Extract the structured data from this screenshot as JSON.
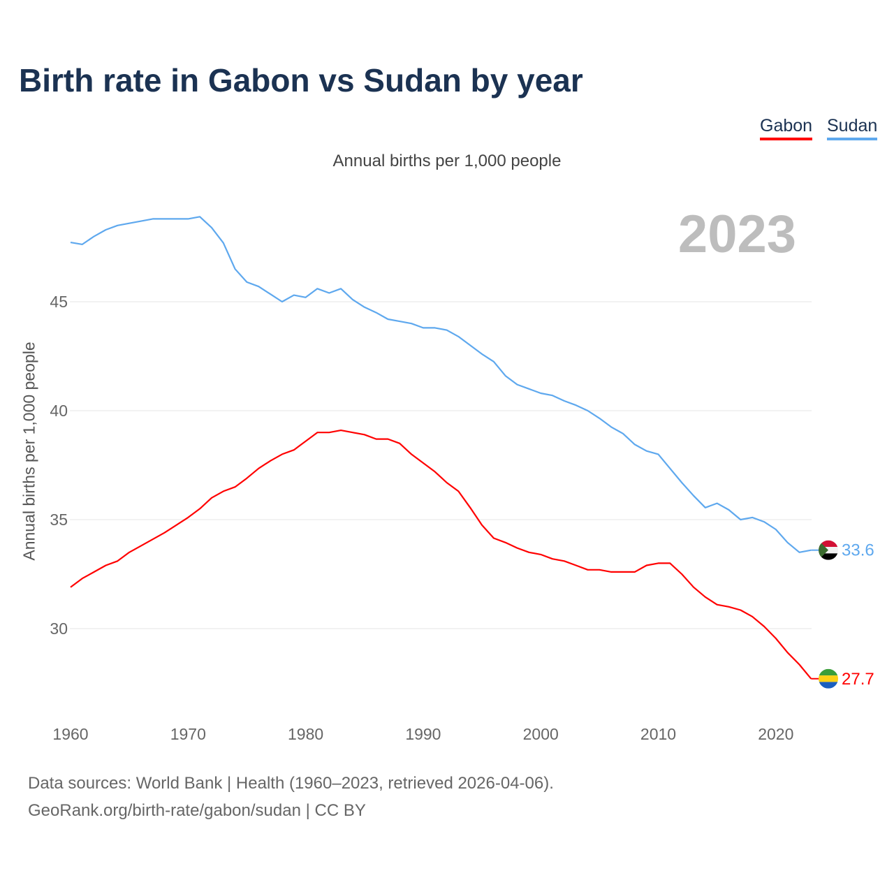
{
  "title": "Birth rate in Gabon vs Sudan by year",
  "legend": {
    "gabon": "Gabon",
    "sudan": "Sudan"
  },
  "subtitle": "Annual births per 1,000 people",
  "year_display": "2023",
  "sources": {
    "line1": "Data sources: World Bank | Health (1960–2023, retrieved 2026-04-06).",
    "line2": "GeoRank.org/birth-rate/gabon/sudan | CC BY"
  },
  "chart_data": {
    "type": "line",
    "title": "Birth rate in Gabon vs Sudan by year",
    "xlabel": "",
    "ylabel": "Annual births per 1,000 people",
    "xlim": [
      1960,
      2023
    ],
    "ylim": [
      26.5,
      49.5
    ],
    "x_ticks": [
      "1960",
      "1970",
      "1980",
      "1990",
      "2000",
      "2010",
      "2020"
    ],
    "y_ticks": [
      "30",
      "35",
      "40",
      "45"
    ],
    "grid": true,
    "legend_position": "top-right",
    "x": [
      1960,
      1961,
      1962,
      1963,
      1964,
      1965,
      1966,
      1967,
      1968,
      1969,
      1970,
      1971,
      1972,
      1973,
      1974,
      1975,
      1976,
      1977,
      1978,
      1979,
      1980,
      1981,
      1982,
      1983,
      1984,
      1985,
      1986,
      1987,
      1988,
      1989,
      1990,
      1991,
      1992,
      1993,
      1994,
      1995,
      1996,
      1997,
      1998,
      1999,
      2000,
      2001,
      2002,
      2003,
      2004,
      2005,
      2006,
      2007,
      2008,
      2009,
      2010,
      2011,
      2012,
      2013,
      2014,
      2015,
      2016,
      2017,
      2018,
      2019,
      2020,
      2021,
      2022,
      2023
    ],
    "series": [
      {
        "name": "Gabon",
        "color": "#ff0000",
        "end_label": "27.7",
        "values": [
          31.9,
          32.3,
          32.6,
          32.9,
          33.1,
          33.5,
          33.8,
          34.1,
          34.4,
          34.75,
          35.1,
          35.5,
          36.0,
          36.3,
          36.5,
          36.9,
          37.35,
          37.7,
          38.0,
          38.2,
          38.6,
          39.0,
          39.0,
          39.1,
          39.0,
          38.9,
          38.7,
          38.7,
          38.5,
          38.0,
          37.6,
          37.2,
          36.7,
          36.3,
          35.55,
          34.75,
          34.15,
          33.95,
          33.7,
          33.5,
          33.4,
          33.2,
          33.1,
          32.9,
          32.7,
          32.7,
          32.6,
          32.6,
          32.6,
          32.9,
          33.0,
          33.0,
          32.5,
          31.9,
          31.45,
          31.1,
          31.0,
          30.85,
          30.55,
          30.1,
          29.55,
          28.9,
          28.35,
          27.7
        ]
      },
      {
        "name": "Sudan",
        "color": "#5ea8ee",
        "end_label": "33.6",
        "values": [
          47.72,
          47.63,
          48.0,
          48.3,
          48.5,
          48.6,
          48.7,
          48.8,
          48.8,
          48.8,
          48.8,
          48.9,
          48.4,
          47.7,
          46.5,
          45.9,
          45.7,
          45.35,
          45.0,
          45.3,
          45.2,
          45.6,
          45.4,
          45.6,
          45.1,
          44.75,
          44.5,
          44.2,
          44.1,
          44.0,
          43.8,
          43.8,
          43.7,
          43.4,
          43.0,
          42.6,
          42.25,
          41.6,
          41.2,
          41.0,
          40.8,
          40.7,
          40.45,
          40.25,
          40.0,
          39.65,
          39.25,
          38.95,
          38.45,
          38.15,
          38.0,
          37.35,
          36.7,
          36.1,
          35.55,
          35.75,
          35.45,
          35.0,
          35.1,
          34.9,
          34.55,
          33.95,
          33.5,
          33.6
        ]
      }
    ]
  }
}
